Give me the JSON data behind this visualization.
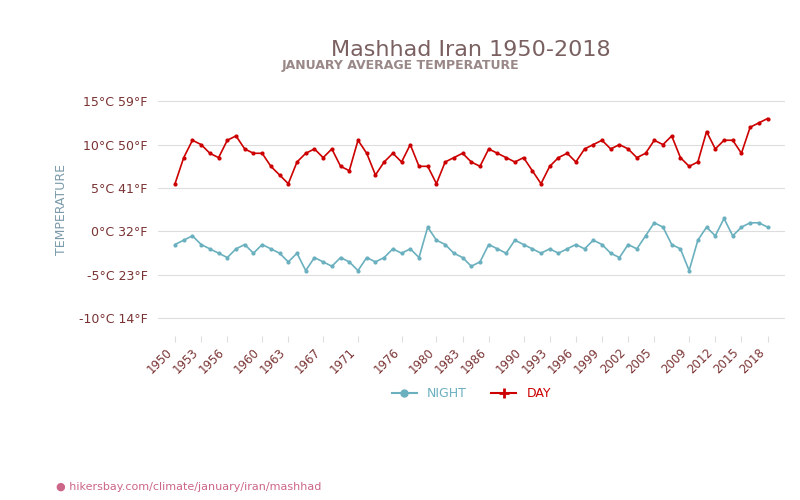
{
  "title": "Mashhad Iran 1950-2018",
  "subtitle": "JANUARY AVERAGE TEMPERATURE",
  "ylabel": "TEMPERATURE",
  "xlabel_url": "hikersbay.com/climate/january/iran/mashhad",
  "ylim": [
    -12,
    17
  ],
  "yticks": [
    -10,
    -5,
    0,
    5,
    10,
    15
  ],
  "ytick_labels_c": [
    "-10°C 14°F",
    "-5°C 23°F",
    "0°C 32°F",
    "5°C 41°F",
    "10°C 50°F",
    "15°C 59°F"
  ],
  "years": [
    1950,
    1951,
    1952,
    1953,
    1954,
    1955,
    1956,
    1957,
    1958,
    1959,
    1960,
    1961,
    1962,
    1963,
    1964,
    1965,
    1966,
    1967,
    1968,
    1969,
    1970,
    1971,
    1972,
    1973,
    1974,
    1975,
    1976,
    1977,
    1978,
    1979,
    1980,
    1981,
    1982,
    1983,
    1984,
    1985,
    1986,
    1987,
    1988,
    1989,
    1990,
    1991,
    1992,
    1993,
    1994,
    1995,
    1996,
    1997,
    1998,
    1999,
    2000,
    2001,
    2002,
    2003,
    2004,
    2005,
    2006,
    2007,
    2008,
    2009,
    2010,
    2011,
    2012,
    2013,
    2014,
    2015,
    2016,
    2017,
    2018
  ],
  "day_temps": [
    5.5,
    8.5,
    10.5,
    10.0,
    9.0,
    8.5,
    10.5,
    11.0,
    9.5,
    9.0,
    9.0,
    7.5,
    6.5,
    5.5,
    8.0,
    9.0,
    9.5,
    8.5,
    9.5,
    7.5,
    7.0,
    10.5,
    9.0,
    6.5,
    8.0,
    9.0,
    8.0,
    10.0,
    7.5,
    7.5,
    5.5,
    8.0,
    8.5,
    9.0,
    8.0,
    7.5,
    9.5,
    9.0,
    8.5,
    8.0,
    8.5,
    7.0,
    5.5,
    7.5,
    8.5,
    9.0,
    8.0,
    9.5,
    10.0,
    10.5,
    9.5,
    10.0,
    9.5,
    8.5,
    9.0,
    10.5,
    10.0,
    11.0,
    8.5,
    7.5,
    8.0,
    11.5,
    9.5,
    10.5,
    10.5,
    9.0,
    12.0,
    12.5,
    13.0
  ],
  "night_temps": [
    -1.5,
    -1.0,
    -0.5,
    -1.5,
    -2.0,
    -2.5,
    -3.0,
    -2.0,
    -1.5,
    -2.5,
    -1.5,
    -2.0,
    -2.5,
    -3.5,
    -2.5,
    -4.5,
    -3.0,
    -3.5,
    -4.0,
    -3.0,
    -3.5,
    -4.5,
    -3.0,
    -3.5,
    -3.0,
    -2.0,
    -2.5,
    -2.0,
    -3.0,
    0.5,
    -1.0,
    -1.5,
    -2.5,
    -3.0,
    -4.0,
    -3.5,
    -1.5,
    -2.0,
    -2.5,
    -1.0,
    -1.5,
    -2.0,
    -2.5,
    -2.0,
    -2.5,
    -2.0,
    -1.5,
    -2.0,
    -1.0,
    -1.5,
    -2.5,
    -3.0,
    -1.5,
    -2.0,
    -0.5,
    1.0,
    0.5,
    -1.5,
    -2.0,
    -4.5,
    -1.0,
    0.5,
    -0.5,
    1.5,
    -0.5,
    0.5,
    1.0,
    1.0,
    0.5
  ],
  "day_color": "#cc0000",
  "night_color": "#6ab0be",
  "title_color": "#7a6060",
  "subtitle_color": "#9a8888",
  "tick_label_color": "#7a3333",
  "ylabel_color": "#7a9aaa",
  "url_color": "#cc6688",
  "grid_color": "#dddddd",
  "bg_color": "#ffffff",
  "xtick_years": [
    1950,
    1953,
    1956,
    1960,
    1963,
    1967,
    1971,
    1976,
    1980,
    1983,
    1986,
    1990,
    1993,
    1996,
    1999,
    2002,
    2005,
    2009,
    2012,
    2015,
    2018
  ]
}
